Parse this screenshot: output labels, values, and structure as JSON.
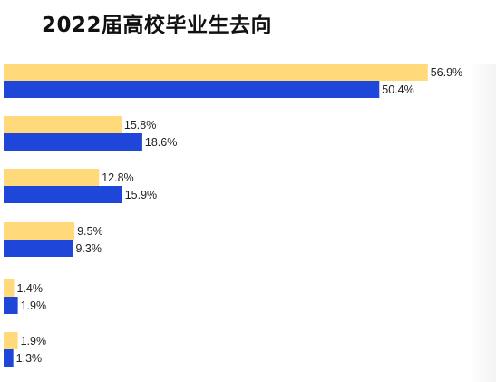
{
  "header": {
    "title": "2022届高校毕业生去向"
  },
  "chart_data": {
    "type": "bar",
    "orientation": "horizontal",
    "title": "2022届高校毕业生去向",
    "xlabel": "",
    "ylabel": "",
    "categories": [
      "",
      "",
      "",
      "",
      "",
      ""
    ],
    "series": [
      {
        "color": "#FFD97A",
        "values": [
          56.9,
          15.8,
          12.8,
          9.5,
          1.4,
          1.9
        ]
      },
      {
        "color": "#1E46D8",
        "values": [
          50.4,
          18.6,
          15.9,
          9.3,
          1.9,
          1.3
        ]
      }
    ],
    "value_labels": [
      [
        "56.9%",
        "15.8%",
        "12.8%",
        "9.5%",
        "1.4%",
        "1.9%"
      ],
      [
        "50.4%",
        "18.6%",
        "15.9%",
        "9.3%",
        "1.9%",
        "1.3%"
      ]
    ],
    "xlim": [
      0,
      60
    ],
    "grid": false,
    "legend": false
  }
}
